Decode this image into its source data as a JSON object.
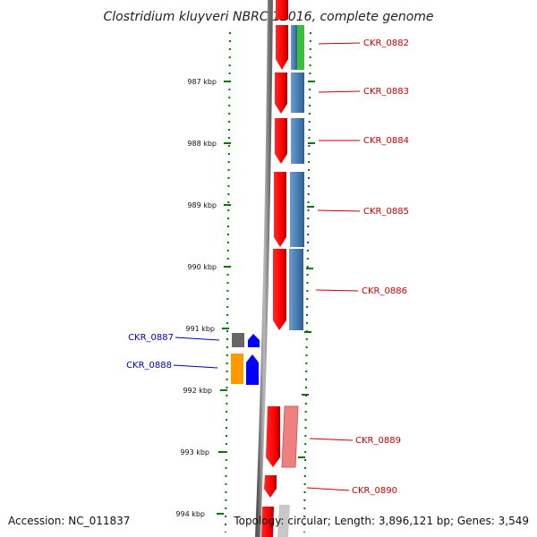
{
  "title": "Clostridium kluyveri NBRC 12016, complete genome",
  "footer": {
    "accession": "Accession: NC_011837",
    "topology": "Topology: circular; Length: 3,896,121 bp; Genes: 3,549"
  },
  "ticks": [
    "987 kbp",
    "988 kbp",
    "989 kbp",
    "990 kbp",
    "991 kbp",
    "992 kbp",
    "993 kbp",
    "994 kbp"
  ],
  "colors": {
    "forward_gene": "#ff0000",
    "reverse_gene": "#0000ff",
    "cds_blue": "#4a7fb4",
    "cds_green": "#3bbf3b",
    "cds_pink": "#f08080",
    "cds_gray": "#666666",
    "cds_orange": "#ff9900",
    "label_red": "#cc0000",
    "label_blue": "#0000bb",
    "tick_green": "#007700",
    "backbone": "#888888"
  },
  "genes": [
    {
      "id": "CKR_0882",
      "label": "CKR_0882",
      "strand": "forward"
    },
    {
      "id": "CKR_0883",
      "label": "CKR_0883",
      "strand": "forward"
    },
    {
      "id": "CKR_0884",
      "label": "CKR_0884",
      "strand": "forward"
    },
    {
      "id": "CKR_0885",
      "label": "CKR_0885",
      "strand": "forward"
    },
    {
      "id": "CKR_0886",
      "label": "CKR_0886",
      "strand": "forward"
    },
    {
      "id": "CKR_0887",
      "label": "CKR_0887",
      "strand": "reverse"
    },
    {
      "id": "CKR_0888",
      "label": "CKR_0888",
      "strand": "reverse"
    },
    {
      "id": "CKR_0889",
      "label": "CKR_0889",
      "strand": "forward"
    },
    {
      "id": "CKR_0890",
      "label": "CKR_0890",
      "strand": "forward"
    }
  ]
}
